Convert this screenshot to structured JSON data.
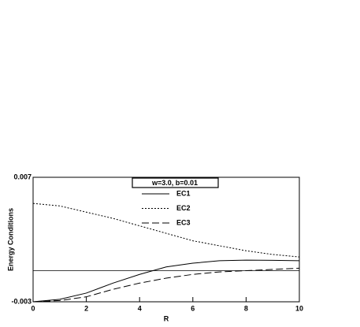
{
  "chart_data": {
    "type": "line",
    "legend_title": "w=3.0, b=0.01",
    "x_label": "R",
    "y_label": "Energy Conditions",
    "x": [
      0,
      1,
      2,
      3,
      4,
      5,
      6,
      7,
      8,
      9,
      10
    ],
    "series": [
      {
        "name": "EC1",
        "color": "#000000",
        "dash": "solid",
        "values": [
          -0.003,
          -0.0028,
          -0.0023,
          -0.0015,
          -0.0008,
          -0.0002,
          0.0001,
          0.0003,
          0.00035,
          0.00033,
          0.0003
        ]
      },
      {
        "name": "EC2",
        "color": "#000000",
        "dash": "dotted",
        "values": [
          0.0049,
          0.0047,
          0.0042,
          0.0037,
          0.0031,
          0.0025,
          0.0019,
          0.0015,
          0.0011,
          0.0008,
          0.0006
        ]
      },
      {
        "name": "EC3",
        "color": "#000000",
        "dash": "dashed",
        "values": [
          -0.003,
          -0.0029,
          -0.0026,
          -0.002,
          -0.0015,
          -0.0011,
          -0.0008,
          -0.0006,
          -0.0005,
          -0.0004,
          -0.0003
        ]
      }
    ],
    "hline": -0.0005,
    "xlim": [
      0,
      10
    ],
    "xticks": [
      0,
      2,
      4,
      6,
      8,
      10
    ],
    "ylim": [
      -0.003,
      0.007
    ],
    "yticks": [
      -0.003,
      0.007
    ]
  }
}
